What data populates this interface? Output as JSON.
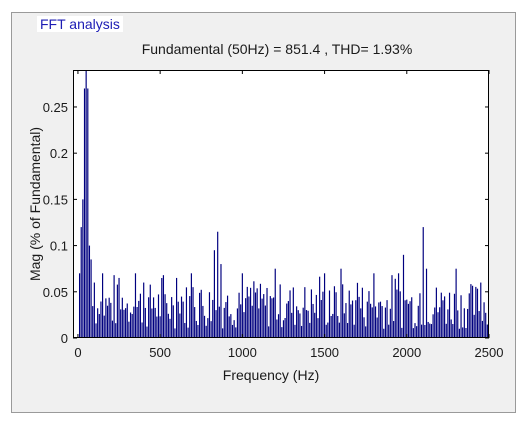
{
  "panel": {
    "title": "FFT analysis"
  },
  "colors": {
    "bars": "#00007f",
    "panel_bg": "#f0f0f0",
    "plot_bg": "#ffffff",
    "title": "#1c1cb4"
  },
  "chart_data": {
    "type": "bar",
    "title": "Fundamental (50Hz) = 851.4 , THD= 1.93%",
    "xlabel": "Frequency (Hz)",
    "ylabel": "Mag (% of Fundamental)",
    "xlim": [
      -30,
      2500
    ],
    "ylim": [
      0,
      0.29
    ],
    "xticks": [
      0,
      500,
      1000,
      1500,
      2000,
      2500
    ],
    "xtick_labels": [
      "0",
      "500",
      "1000",
      "1500",
      "2000",
      "2500"
    ],
    "yticks": [
      0,
      0.05,
      0.1,
      0.15,
      0.2,
      0.25
    ],
    "ytick_labels": [
      "0",
      "0.05",
      "0.1",
      "0.15",
      "0.2",
      "0.25"
    ],
    "grid": false,
    "bin_width_hz": 10,
    "fundamental_clipped": true,
    "peaks": [
      {
        "x": 10,
        "y": 0.07
      },
      {
        "x": 20,
        "y": 0.12
      },
      {
        "x": 30,
        "y": 0.15
      },
      {
        "x": 40,
        "y": 0.27
      },
      {
        "x": 50,
        "y": 0.29
      },
      {
        "x": 60,
        "y": 0.27
      },
      {
        "x": 70,
        "y": 0.1
      },
      {
        "x": 80,
        "y": 0.085
      },
      {
        "x": 100,
        "y": 0.06
      },
      {
        "x": 150,
        "y": 0.07
      },
      {
        "x": 250,
        "y": 0.065
      },
      {
        "x": 350,
        "y": 0.07
      },
      {
        "x": 400,
        "y": 0.06
      },
      {
        "x": 600,
        "y": 0.065
      },
      {
        "x": 690,
        "y": 0.07
      },
      {
        "x": 830,
        "y": 0.095
      },
      {
        "x": 850,
        "y": 0.115
      },
      {
        "x": 870,
        "y": 0.08
      },
      {
        "x": 1000,
        "y": 0.07
      },
      {
        "x": 1200,
        "y": 0.075
      },
      {
        "x": 1500,
        "y": 0.07
      },
      {
        "x": 1600,
        "y": 0.075
      },
      {
        "x": 1800,
        "y": 0.07
      },
      {
        "x": 1950,
        "y": 0.07
      },
      {
        "x": 1980,
        "y": 0.09
      },
      {
        "x": 2100,
        "y": 0.12
      },
      {
        "x": 2120,
        "y": 0.075
      },
      {
        "x": 2300,
        "y": 0.075
      },
      {
        "x": 2450,
        "y": 0.06
      }
    ],
    "baseline_min": 0.01,
    "baseline_max": 0.06
  }
}
